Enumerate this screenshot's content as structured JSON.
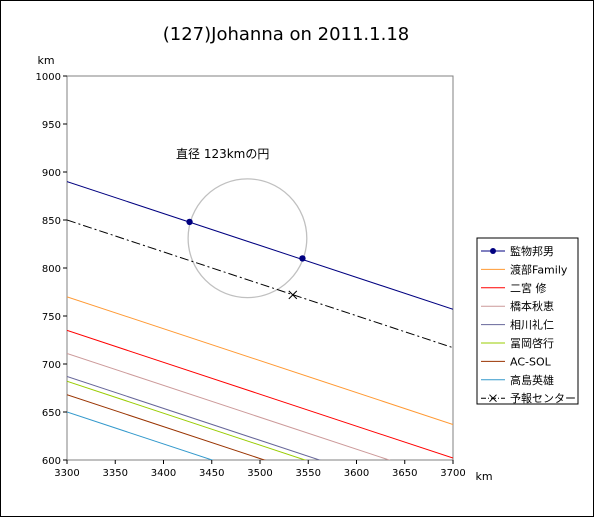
{
  "chart_data": {
    "type": "line",
    "title": "(127)Johanna on 2011.1.18",
    "xlabel": "km",
    "ylabel": "km",
    "xlim": [
      3300,
      3700
    ],
    "ylim": [
      600,
      1000
    ],
    "x_ticks": [
      "3300",
      "3350",
      "3400",
      "3450",
      "3500",
      "3550",
      "3600",
      "3650",
      "3700"
    ],
    "y_ticks": [
      "600",
      "650",
      "700",
      "750",
      "800",
      "850",
      "900",
      "950",
      "1000"
    ],
    "grid": false,
    "legend_position": "right",
    "annotation": "直径 123kmの円",
    "circle": {
      "cx": 3487,
      "cy": 831,
      "diameter": 123,
      "color": "#c0c0c0"
    },
    "series": [
      {
        "name": "監物邦男",
        "color": "#000080",
        "style": "solid",
        "marker": "dot",
        "x": [
          3300,
          3700
        ],
        "y": [
          890,
          757
        ],
        "points": [
          {
            "x": 3427,
            "y": 848
          },
          {
            "x": 3544,
            "y": 810
          }
        ]
      },
      {
        "name": "渡部Family",
        "color": "#ff9933",
        "style": "solid",
        "x": [
          3300,
          3700
        ],
        "y": [
          770,
          637
        ]
      },
      {
        "name": "二宮 修",
        "color": "#ff0000",
        "style": "solid",
        "x": [
          3300,
          3700
        ],
        "y": [
          735,
          602
        ]
      },
      {
        "name": "橋本秋恵",
        "color": "#cc9999",
        "style": "solid",
        "x": [
          3300,
          3700
        ],
        "y": [
          711,
          578
        ]
      },
      {
        "name": "相川礼仁",
        "color": "#666699",
        "style": "solid",
        "x": [
          3300,
          3700
        ],
        "y": [
          687,
          554
        ]
      },
      {
        "name": "冨岡啓行",
        "color": "#99cc00",
        "style": "solid",
        "x": [
          3300,
          3700
        ],
        "y": [
          682,
          549
        ]
      },
      {
        "name": "AC-SOL",
        "color": "#993300",
        "style": "solid",
        "x": [
          3300,
          3700
        ],
        "y": [
          668,
          535
        ]
      },
      {
        "name": "高島英雄",
        "color": "#3399cc",
        "style": "solid",
        "x": [
          3300,
          3700
        ],
        "y": [
          650,
          517
        ]
      },
      {
        "name": "予報センター",
        "color": "#000000",
        "style": "dashdot",
        "marker": "x",
        "x": [
          3300,
          3700
        ],
        "y": [
          850,
          717
        ],
        "points": [
          {
            "x": 3534,
            "y": 772
          }
        ]
      }
    ]
  }
}
